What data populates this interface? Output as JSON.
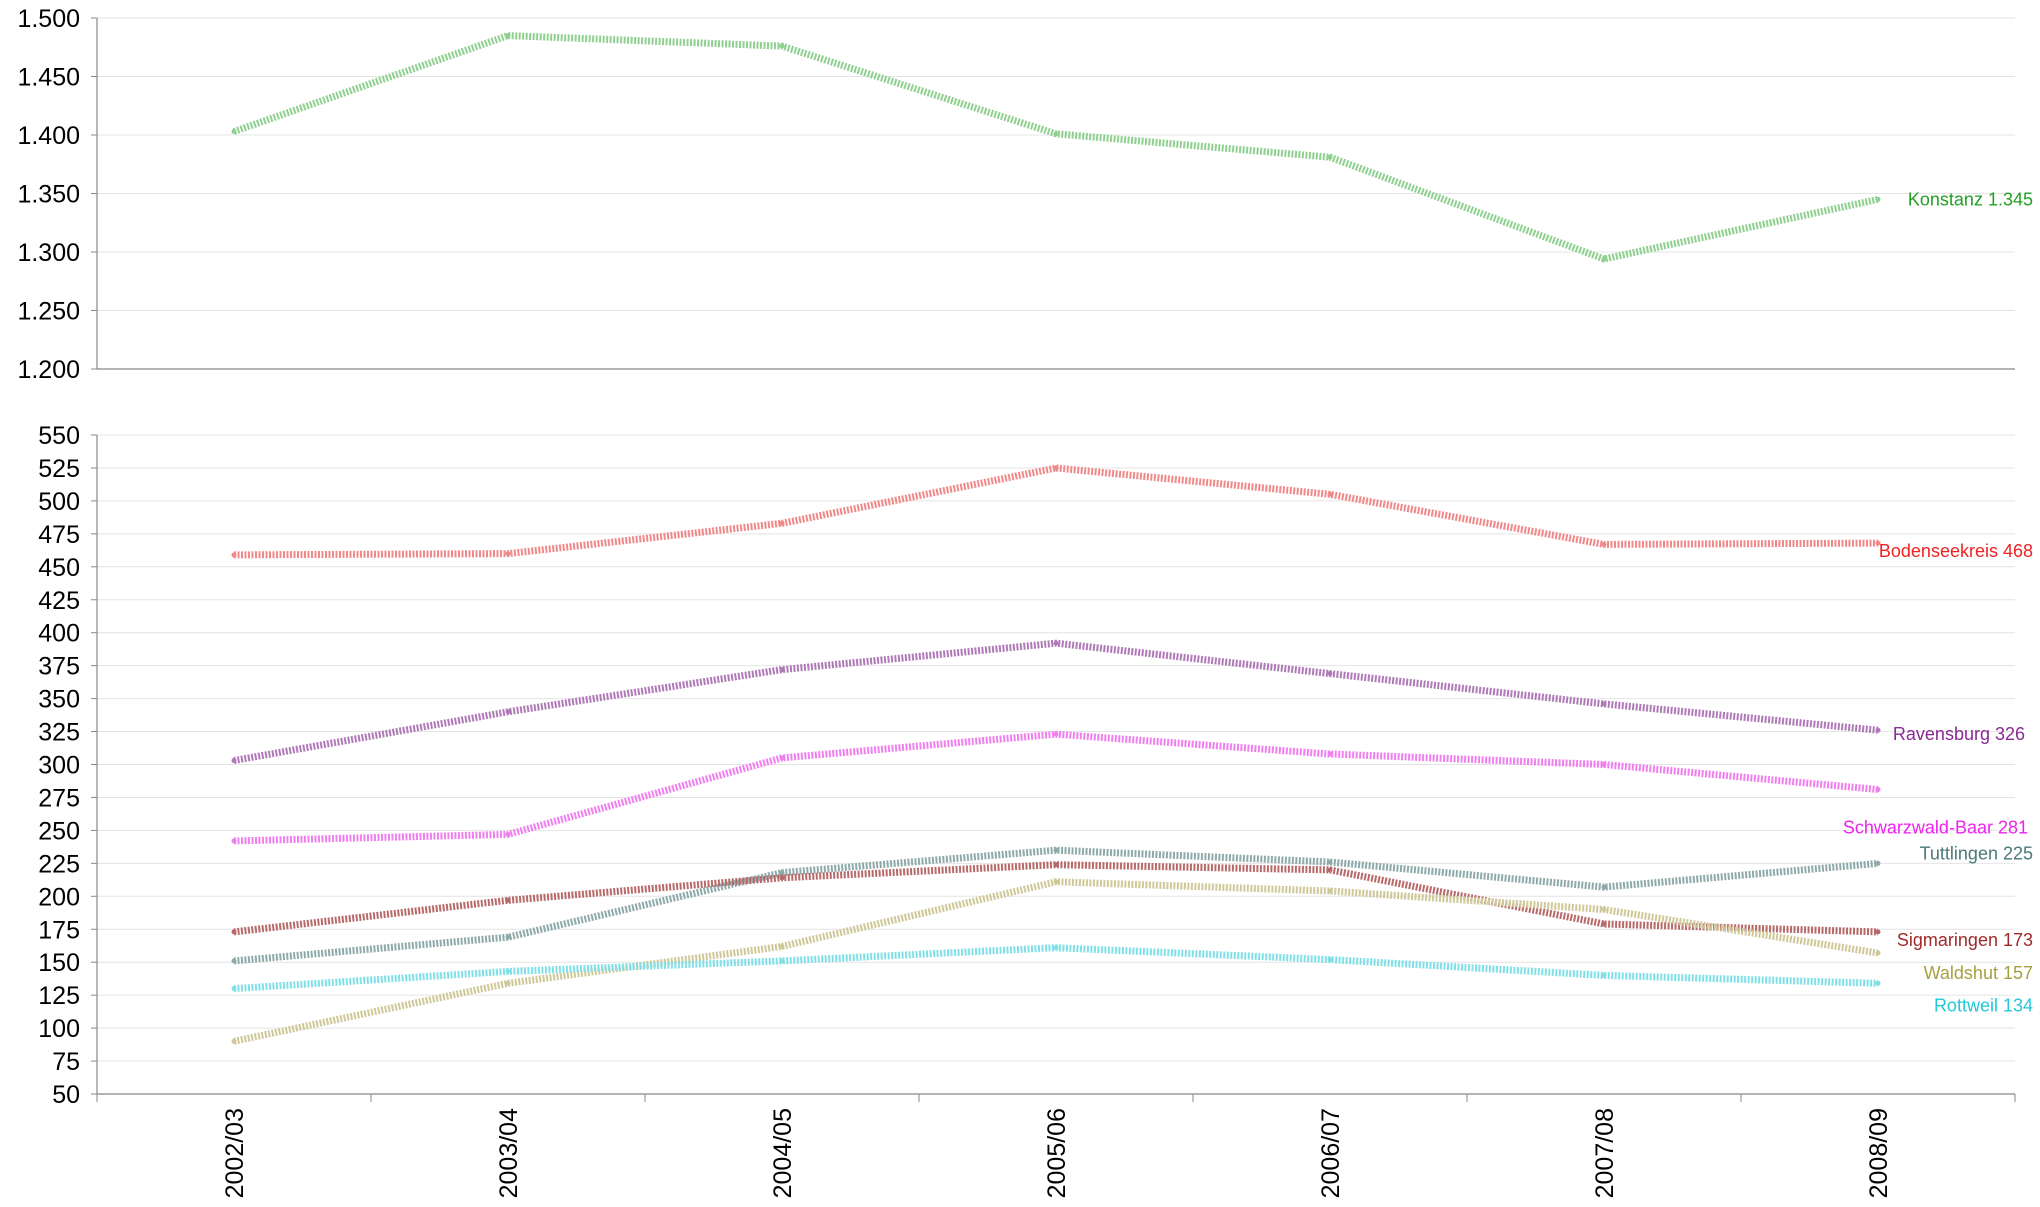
{
  "chart_data": [
    {
      "type": "line",
      "title": "",
      "xlabel": "",
      "ylabel": "",
      "ylim": [
        1200,
        1500
      ],
      "yticks": [
        1200,
        1250,
        1300,
        1350,
        1400,
        1450,
        1500
      ],
      "ytick_labels": [
        "1.200",
        "1.250",
        "1.300",
        "1.350",
        "1.400",
        "1.450",
        "1.500"
      ],
      "grid": true,
      "categories": [
        "2002/03",
        "2003/04",
        "2004/05",
        "2005/06",
        "2006/07",
        "2007/08",
        "2008/09"
      ],
      "series": [
        {
          "name": "Konstanz",
          "end_label": "Konstanz 1.345",
          "color": "#90d090",
          "label_color": "#22a022",
          "values": [
            1403,
            1485,
            1476,
            1401,
            1381,
            1294,
            1345
          ]
        }
      ]
    },
    {
      "type": "line",
      "title": "",
      "xlabel": "",
      "ylabel": "",
      "ylim": [
        50,
        550
      ],
      "yticks": [
        50,
        75,
        100,
        125,
        150,
        175,
        200,
        225,
        250,
        275,
        300,
        325,
        350,
        375,
        400,
        425,
        450,
        475,
        500,
        525,
        550
      ],
      "ytick_labels": [
        "50",
        "75",
        "100",
        "125",
        "150",
        "175",
        "200",
        "225",
        "250",
        "275",
        "300",
        "325",
        "350",
        "375",
        "400",
        "425",
        "450",
        "475",
        "500",
        "525",
        "550"
      ],
      "grid": true,
      "categories": [
        "2002/03",
        "2003/04",
        "2004/05",
        "2005/06",
        "2006/07",
        "2007/08",
        "2008/09"
      ],
      "series": [
        {
          "name": "Bodenseekreis",
          "end_label": "Bodenseekreis 468",
          "color": "#f08a8a",
          "label_color": "#ee2222",
          "values": [
            459,
            460,
            483,
            525,
            505,
            467,
            468
          ]
        },
        {
          "name": "Ravensburg",
          "end_label": "Ravensburg 326",
          "color": "#b07ab8",
          "label_color": "#8a2a96",
          "values": [
            303,
            340,
            372,
            392,
            369,
            346,
            326
          ]
        },
        {
          "name": "Schwarzwald-Baar",
          "end_label": "Schwarzwald-Baar 281",
          "color": "#f080f0",
          "label_color": "#ee22ee",
          "values": [
            242,
            247,
            305,
            323,
            308,
            300,
            281
          ]
        },
        {
          "name": "Tuttlingen",
          "end_label": "Tuttlingen 225",
          "color": "#8faaaa",
          "label_color": "#4a7878",
          "values": [
            151,
            169,
            218,
            235,
            226,
            207,
            225
          ]
        },
        {
          "name": "Sigmaringen",
          "end_label": "Sigmaringen 173",
          "color": "#b86a6a",
          "label_color": "#a02a2a",
          "values": [
            173,
            197,
            214,
            224,
            220,
            179,
            173
          ]
        },
        {
          "name": "Waldshut",
          "end_label": "Waldshut 157",
          "color": "#cfc898",
          "label_color": "#a8a040",
          "values": [
            90,
            134,
            162,
            211,
            204,
            190,
            157
          ]
        },
        {
          "name": "Rottweil",
          "end_label": "Rottweil 134",
          "color": "#80e0e8",
          "label_color": "#22c8d8",
          "values": [
            130,
            143,
            151,
            161,
            152,
            140,
            134
          ]
        }
      ]
    }
  ]
}
